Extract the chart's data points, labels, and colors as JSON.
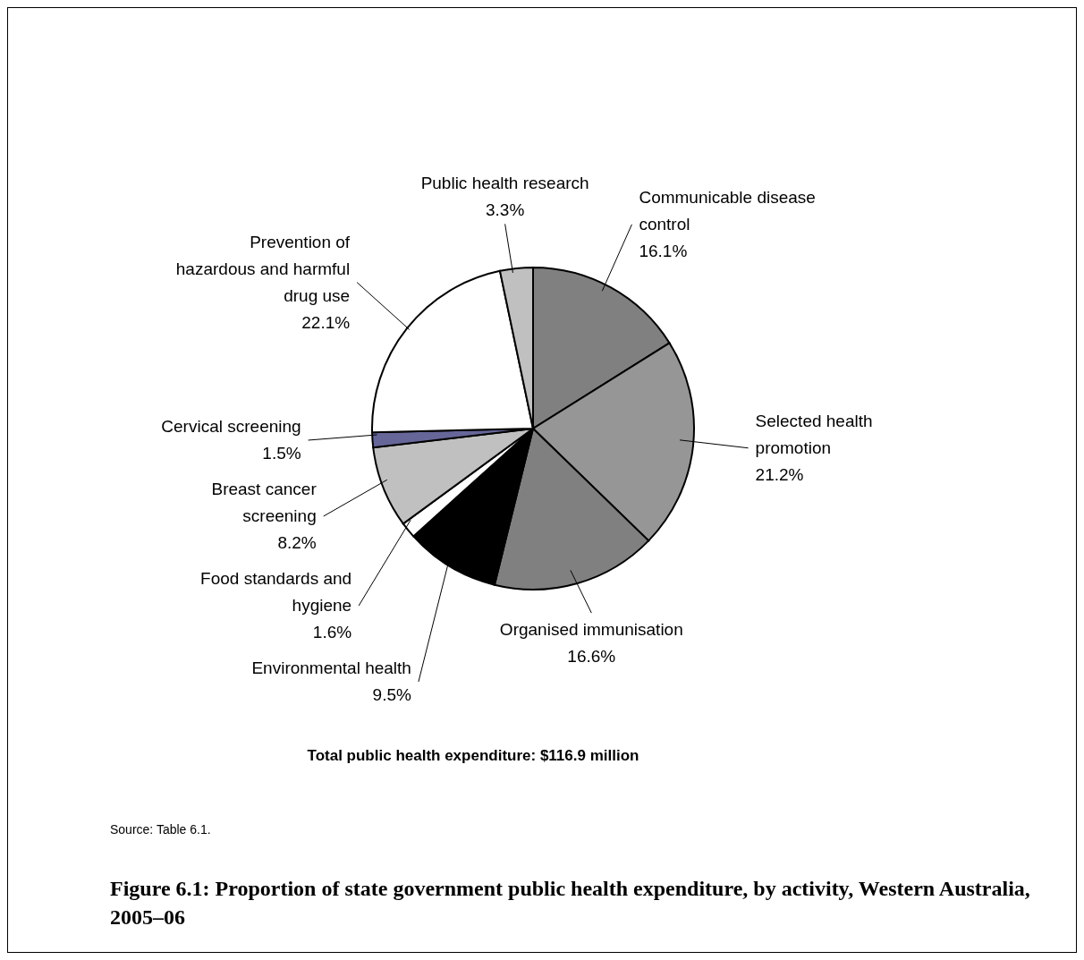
{
  "chart_data": {
    "type": "pie",
    "title": "Figure 6.1: Proportion of state government public health expenditure, by activity, Western Australia, 2005–06",
    "categories": [
      "Communicable disease control",
      "Selected health promotion",
      "Organised immunisation",
      "Environmental health",
      "Food standards and hygiene",
      "Breast cancer screening",
      "Cervical screening",
      "Prevention of hazardous and harmful drug use",
      "Public health research"
    ],
    "values": [
      16.1,
      21.2,
      16.6,
      9.5,
      1.6,
      8.2,
      1.5,
      22.1,
      3.3
    ],
    "value_labels": [
      "16.1%",
      "21.2%",
      "16.6%",
      "9.5%",
      "1.6%",
      "8.2%",
      "1.5%",
      "22.1%",
      "3.3%"
    ],
    "colors": [
      "#808080",
      "#969696",
      "#808080",
      "#000000",
      "#ffffff",
      "#c0c0c0",
      "#666699",
      "#ffffff",
      "#c0c0c0"
    ],
    "annotations": [
      "Total public health expenditure: $116.9 million",
      "Source: Table 6.1."
    ]
  }
}
